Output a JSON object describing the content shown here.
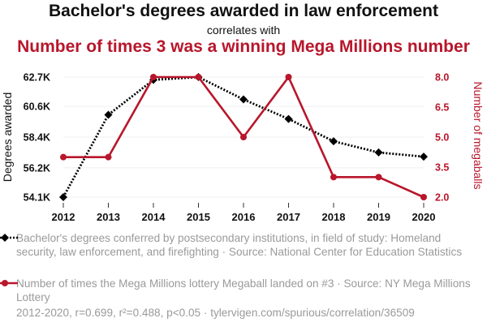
{
  "title": "Bachelor's degrees awarded in law enforcement",
  "subtitle": "correlates with",
  "title2": "Number of times 3 was a winning Mega Millions number",
  "chart_data": {
    "type": "line",
    "x": [
      2012,
      2013,
      2014,
      2015,
      2016,
      2017,
      2018,
      2019,
      2020
    ],
    "series": [
      {
        "name": "Bachelor's degrees conferred by postsecondary institutions, in field of study: Homeland security, law enforcement, and firefighting · Source: National Center for Education Statistics",
        "axis": "left",
        "color": "#000000",
        "style": "dotted",
        "marker": "diamond",
        "values": [
          54100,
          60000,
          62500,
          62700,
          61100,
          59700,
          58100,
          57300,
          57000
        ]
      },
      {
        "name": "Number of times the Mega Millions lottery Megaball landed on #3 · Source: NY Mega Millions Lottery",
        "axis": "right",
        "color": "#b8162b",
        "style": "solid",
        "marker": "circle",
        "values": [
          4,
          4,
          8,
          8,
          5,
          8,
          3,
          3,
          2
        ]
      }
    ],
    "y_left": {
      "label": "Degrees awarded",
      "ylim": [
        54100,
        62700
      ],
      "ticks": [
        54100,
        56200,
        58400,
        60600,
        62700
      ],
      "tick_labels": [
        "54.1K",
        "56.2K",
        "58.4K",
        "60.6K",
        "62.7K"
      ]
    },
    "y_right": {
      "label": "Number of megaballs",
      "ylim": [
        2,
        8
      ],
      "ticks": [
        2,
        3.5,
        5,
        6.5,
        8
      ],
      "tick_labels": [
        "2.0",
        "3.5",
        "5.0",
        "6.5",
        "8.0"
      ]
    },
    "x_tick_labels": [
      "2012",
      "2013",
      "2014",
      "2015",
      "2016",
      "2017",
      "2018",
      "2019",
      "2020"
    ]
  },
  "legend": {
    "series1": "Bachelor's degrees conferred by postsecondary institutions, in field of study: Homeland security, law enforcement, and firefighting · Source: National Center for Education Statistics",
    "series2": "Number of times the Mega Millions lottery Megaball landed on #3 · Source: NY Mega Millions Lottery"
  },
  "footer": "2012-2020, r=0.699, r²=0.488, p<0.05 · tylervigen.com/spurious/correlation/36509",
  "colors": {
    "black_series": "#000000",
    "red_series": "#b8162b",
    "muted_text": "#9a9a9a"
  }
}
